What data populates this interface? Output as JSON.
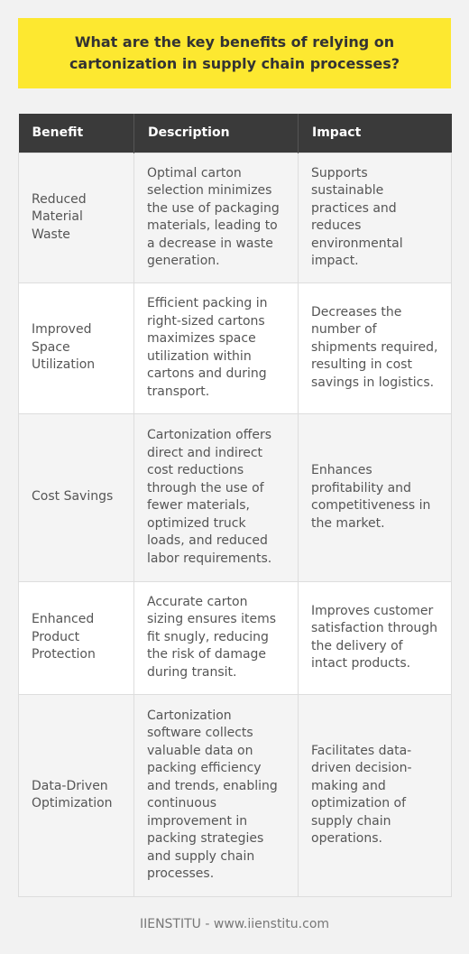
{
  "title": "What are the key benefits of relying on cartonization in supply chain processes?",
  "table": {
    "headers": [
      "Benefit",
      "Description",
      "Impact"
    ],
    "rows": [
      {
        "benefit": "Reduced Material Waste",
        "description": "Optimal carton selection minimizes the use of packaging materials, leading to a decrease in waste generation.",
        "impact": "Supports sustainable practices and reduces environmental impact."
      },
      {
        "benefit": "Improved Space Utilization",
        "description": "Efficient packing in right-sized cartons maximizes space utilization within cartons and during transport.",
        "impact": "Decreases the number of shipments required, resulting in cost savings in logistics."
      },
      {
        "benefit": "Cost Savings",
        "description": "Cartonization offers direct and indirect cost reductions through the use of fewer materials, optimized truck loads, and reduced labor requirements.",
        "impact": "Enhances profitability and competitiveness in the market."
      },
      {
        "benefit": "Enhanced Product Protection",
        "description": "Accurate carton sizing ensures items fit snugly, reducing the risk of damage during transit.",
        "impact": "Improves customer satisfaction through the delivery of intact products."
      },
      {
        "benefit": "Data-Driven Optimization",
        "description": "Cartonization software collects valuable data on packing efficiency and trends, enabling continuous improvement in packing strategies and supply chain processes.",
        "impact": "Facilitates data-driven decision-making and optimization of supply chain operations."
      }
    ]
  },
  "footer": "IIENSTITU - www.iienstitu.com",
  "colors": {
    "title_bg": "#fde830",
    "header_bg": "#3a3a3a",
    "page_bg": "#f2f2f2"
  }
}
